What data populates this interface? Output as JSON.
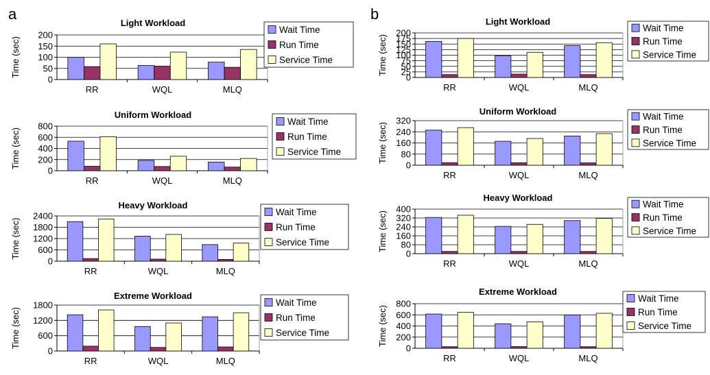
{
  "colors": {
    "wait": "#9999ff",
    "run": "#993366",
    "service": "#ffffcc",
    "axis": "#000000",
    "grid": "#000000"
  },
  "legend": {
    "position": "right",
    "entries": [
      "Wait Time",
      "Run Time",
      "Service Time"
    ]
  },
  "chart_data": [
    {
      "panel": "a",
      "type": "bar",
      "title": "Light Workload",
      "ylabel": "Time (sec)",
      "categories": [
        "RR",
        "WQL",
        "MLQ"
      ],
      "ylim": [
        0,
        200
      ],
      "yticks": [
        0,
        50,
        100,
        150,
        200
      ],
      "grid": true,
      "series": [
        {
          "name": "Wait Time",
          "values": [
            100,
            63,
            78
          ]
        },
        {
          "name": "Run Time",
          "values": [
            58,
            60,
            55
          ]
        },
        {
          "name": "Service Time",
          "values": [
            160,
            123,
            135
          ]
        }
      ]
    },
    {
      "panel": "a",
      "type": "bar",
      "title": "Uniform Workload",
      "ylabel": "Time (sec)",
      "categories": [
        "RR",
        "WQL",
        "MLQ"
      ],
      "ylim": [
        0,
        800
      ],
      "yticks": [
        0,
        200,
        400,
        600,
        800
      ],
      "grid": true,
      "series": [
        {
          "name": "Wait Time",
          "values": [
            530,
            185,
            155
          ]
        },
        {
          "name": "Run Time",
          "values": [
            80,
            75,
            65
          ]
        },
        {
          "name": "Service Time",
          "values": [
            610,
            260,
            220
          ]
        }
      ]
    },
    {
      "panel": "a",
      "type": "bar",
      "title": "Heavy Workload",
      "ylabel": "Time (sec)",
      "categories": [
        "RR",
        "WQL",
        "MLQ"
      ],
      "ylim": [
        0,
        2400
      ],
      "yticks": [
        0,
        600,
        1200,
        1800,
        2400
      ],
      "grid": true,
      "series": [
        {
          "name": "Wait Time",
          "values": [
            2100,
            1330,
            880
          ]
        },
        {
          "name": "Run Time",
          "values": [
            140,
            110,
            95
          ]
        },
        {
          "name": "Service Time",
          "values": [
            2240,
            1420,
            960
          ]
        }
      ]
    },
    {
      "panel": "a",
      "type": "bar",
      "title": "Extreme Workload",
      "ylabel": "Time (sec)",
      "categories": [
        "RR",
        "WQL",
        "MLQ"
      ],
      "ylim": [
        0,
        1800
      ],
      "yticks": [
        0,
        600,
        1200,
        1800
      ],
      "grid": true,
      "series": [
        {
          "name": "Wait Time",
          "values": [
            1420,
            960,
            1340
          ]
        },
        {
          "name": "Run Time",
          "values": [
            190,
            140,
            160
          ]
        },
        {
          "name": "Service Time",
          "values": [
            1610,
            1100,
            1500
          ]
        }
      ]
    },
    {
      "panel": "b",
      "type": "bar",
      "title": "Light Workload",
      "ylabel": "Time (sec)",
      "categories": [
        "RR",
        "WQL",
        "MLQ"
      ],
      "ylim": [
        0,
        200
      ],
      "yticks": [
        0,
        25,
        50,
        75,
        100,
        125,
        150,
        175,
        200
      ],
      "grid": true,
      "series": [
        {
          "name": "Wait Time",
          "values": [
            162,
            98,
            143
          ]
        },
        {
          "name": "Run Time",
          "values": [
            13,
            15,
            13
          ]
        },
        {
          "name": "Service Time",
          "values": [
            175,
            113,
            156
          ]
        }
      ]
    },
    {
      "panel": "b",
      "type": "bar",
      "title": "Uniform Workload",
      "ylabel": "Time (sec)",
      "categories": [
        "RR",
        "WQL",
        "MLQ"
      ],
      "ylim": [
        0,
        320
      ],
      "yticks": [
        0,
        80,
        160,
        240,
        320
      ],
      "grid": true,
      "series": [
        {
          "name": "Wait Time",
          "values": [
            252,
            172,
            210
          ]
        },
        {
          "name": "Run Time",
          "values": [
            18,
            18,
            17
          ]
        },
        {
          "name": "Service Time",
          "values": [
            270,
            192,
            227
          ]
        }
      ]
    },
    {
      "panel": "b",
      "type": "bar",
      "title": "Heavy Workload",
      "ylabel": "Time (sec)",
      "categories": [
        "RR",
        "WQL",
        "MLQ"
      ],
      "ylim": [
        0,
        400
      ],
      "yticks": [
        0,
        80,
        160,
        240,
        320,
        400
      ],
      "grid": true,
      "series": [
        {
          "name": "Wait Time",
          "values": [
            325,
            245,
            297
          ]
        },
        {
          "name": "Run Time",
          "values": [
            20,
            20,
            20
          ]
        },
        {
          "name": "Service Time",
          "values": [
            345,
            263,
            317
          ]
        }
      ]
    },
    {
      "panel": "b",
      "type": "bar",
      "title": "Extreme Workload",
      "ylabel": "Time (sec)",
      "categories": [
        "RR",
        "WQL",
        "MLQ"
      ],
      "ylim": [
        0,
        800
      ],
      "yticks": [
        0,
        200,
        400,
        600,
        800
      ],
      "grid": true,
      "series": [
        {
          "name": "Wait Time",
          "values": [
            615,
            440,
            598
          ]
        },
        {
          "name": "Run Time",
          "values": [
            28,
            30,
            28
          ]
        },
        {
          "name": "Service Time",
          "values": [
            645,
            475,
            628
          ]
        }
      ]
    }
  ],
  "panel_labels": [
    "a",
    "b"
  ]
}
